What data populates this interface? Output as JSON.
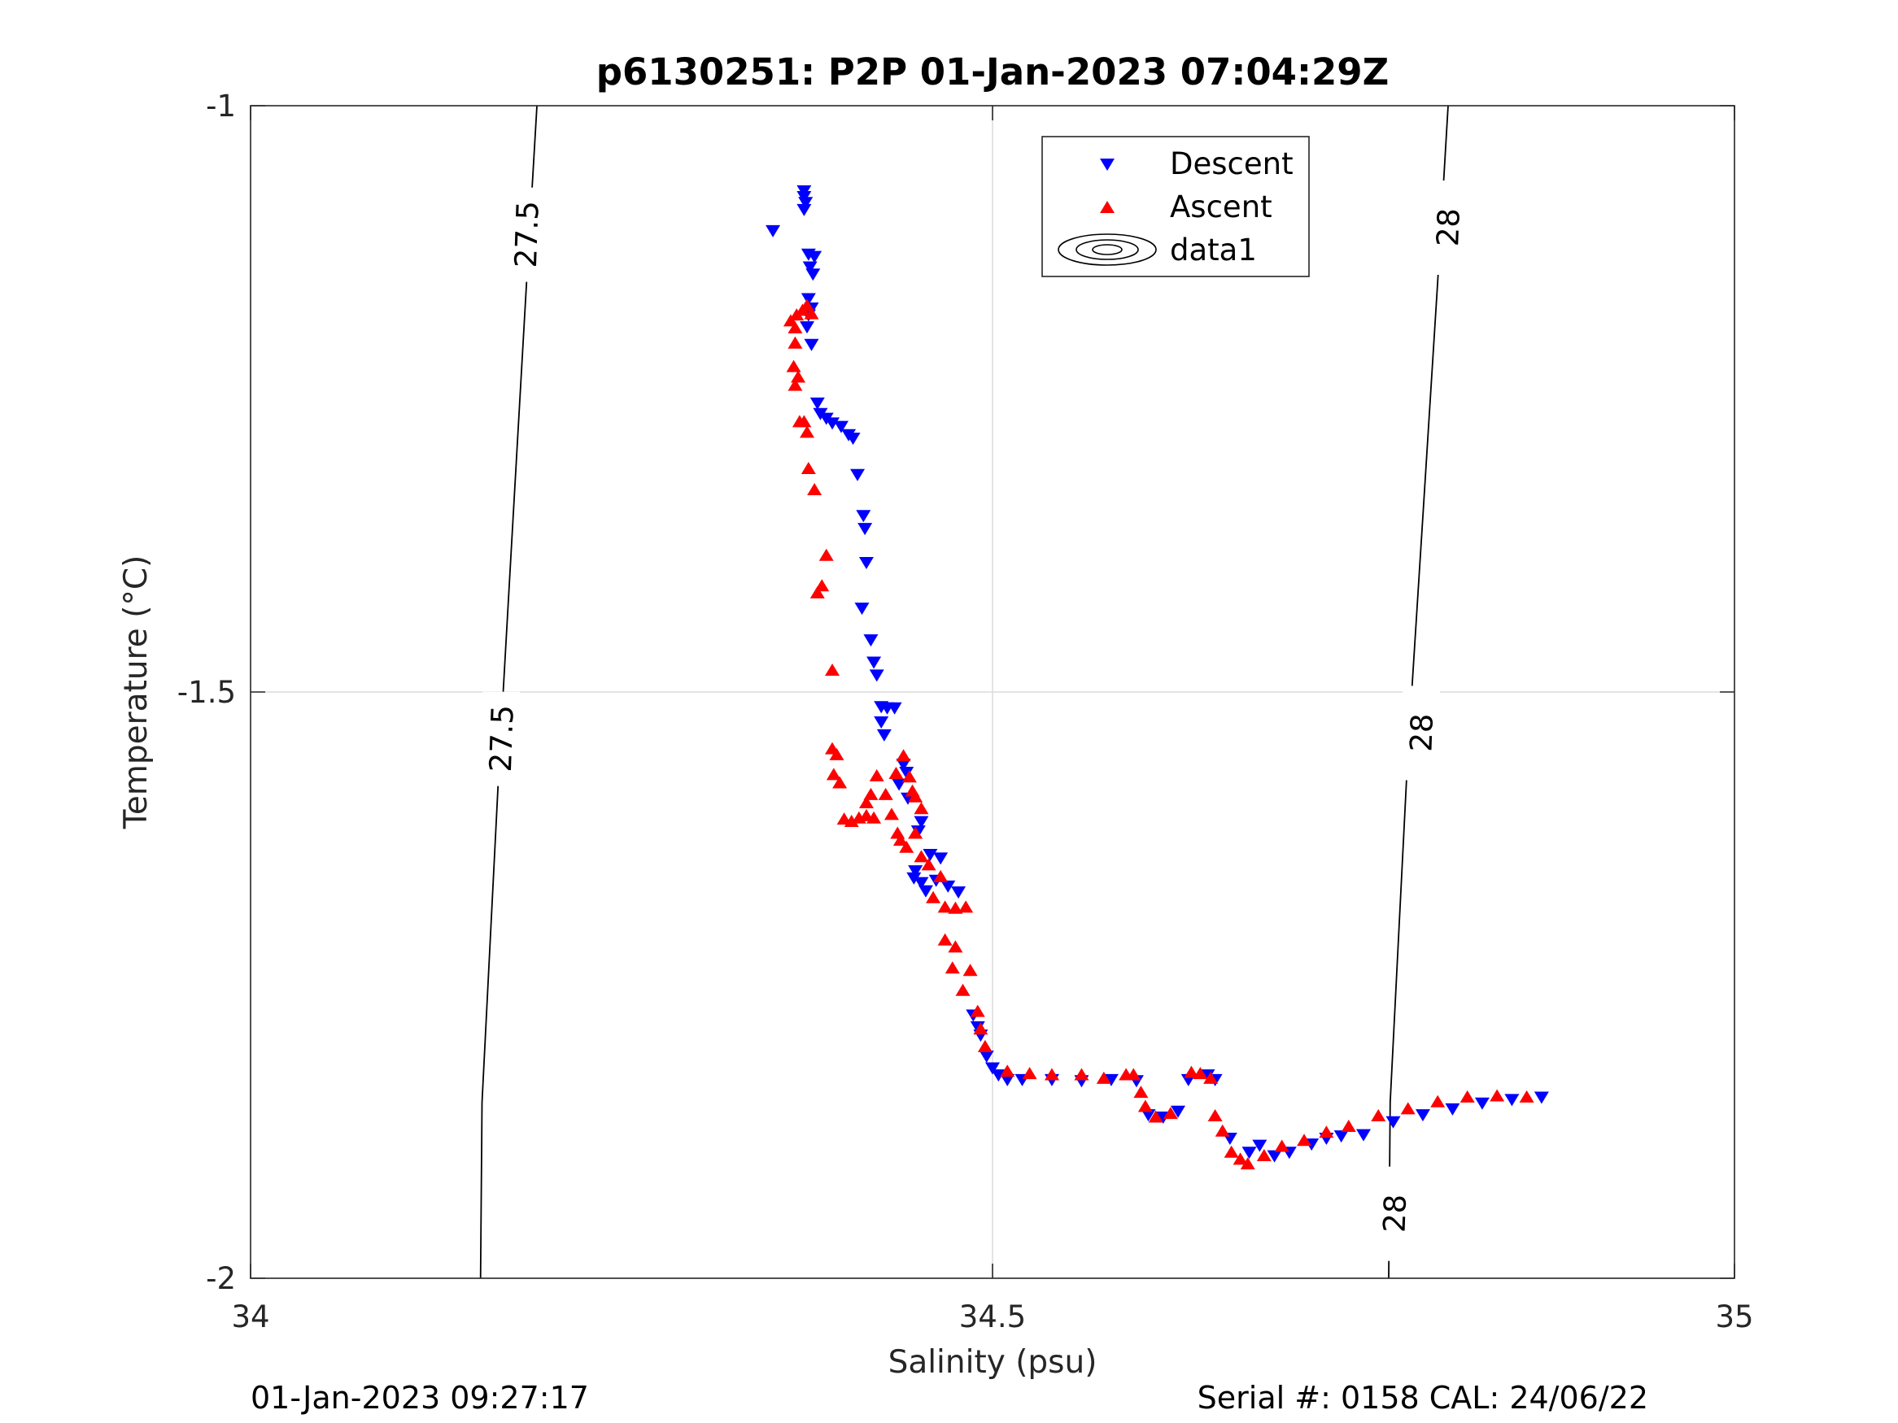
{
  "chart_data": {
    "type": "scatter",
    "title": "p6130251: P2P 01-Jan-2023 07:04:29Z",
    "xlabel": "Salinity (psu)",
    "ylabel": "Temperature (°C)",
    "xlim": [
      34,
      35
    ],
    "ylim": [
      -2,
      -1
    ],
    "xticks": [
      34,
      34.5,
      35
    ],
    "xtick_labels": [
      "34",
      "34.5",
      "35"
    ],
    "yticks": [
      -2,
      -1.5,
      -1
    ],
    "ytick_labels": [
      "-2",
      "-1.5",
      "-1"
    ],
    "grid": true,
    "legend": {
      "placement": "top-center",
      "entries": [
        "Descent",
        "Ascent",
        "data1"
      ]
    },
    "colors": {
      "descent": "#0000ff",
      "ascent": "#ff0000",
      "contour": "#000000",
      "grid": "#dcdcdc",
      "axis": "#262626"
    },
    "series": [
      {
        "name": "Descent",
        "marker": "triangle-down",
        "color": "#0000ff",
        "points": [
          [
            34.373,
            -1.072
          ],
          [
            34.373,
            -1.077
          ],
          [
            34.374,
            -1.082
          ],
          [
            34.373,
            -1.088
          ],
          [
            34.352,
            -1.106
          ],
          [
            34.376,
            -1.126
          ],
          [
            34.38,
            -1.128
          ],
          [
            34.377,
            -1.137
          ],
          [
            34.379,
            -1.143
          ],
          [
            34.376,
            -1.164
          ],
          [
            34.378,
            -1.172
          ],
          [
            34.376,
            -1.178
          ],
          [
            34.375,
            -1.188
          ],
          [
            34.378,
            -1.203
          ],
          [
            34.382,
            -1.253
          ],
          [
            34.384,
            -1.262
          ],
          [
            34.388,
            -1.266
          ],
          [
            34.392,
            -1.27
          ],
          [
            34.398,
            -1.273
          ],
          [
            34.403,
            -1.28
          ],
          [
            34.406,
            -1.283
          ],
          [
            34.409,
            -1.314
          ],
          [
            34.413,
            -1.349
          ],
          [
            34.414,
            -1.36
          ],
          [
            34.415,
            -1.389
          ],
          [
            34.412,
            -1.428
          ],
          [
            34.418,
            -1.455
          ],
          [
            34.42,
            -1.474
          ],
          [
            34.422,
            -1.485
          ],
          [
            34.425,
            -1.512
          ],
          [
            34.429,
            -1.513
          ],
          [
            34.434,
            -1.513
          ],
          [
            34.425,
            -1.525
          ],
          [
            34.427,
            -1.536
          ],
          [
            34.44,
            -1.561
          ],
          [
            34.442,
            -1.568
          ],
          [
            34.437,
            -1.578
          ],
          [
            34.443,
            -1.59
          ],
          [
            34.452,
            -1.61
          ],
          [
            34.45,
            -1.618
          ],
          [
            34.458,
            -1.638
          ],
          [
            34.465,
            -1.641
          ],
          [
            34.448,
            -1.652
          ],
          [
            34.452,
            -1.662
          ],
          [
            34.455,
            -1.669
          ],
          [
            34.447,
            -1.658
          ],
          [
            34.462,
            -1.66
          ],
          [
            34.47,
            -1.665
          ],
          [
            34.477,
            -1.67
          ],
          [
            34.487,
            -1.775
          ],
          [
            34.49,
            -1.785
          ],
          [
            34.492,
            -1.792
          ],
          [
            34.496,
            -1.81
          ],
          [
            34.5,
            -1.82
          ],
          [
            34.504,
            -1.826
          ],
          [
            34.51,
            -1.83
          ],
          [
            34.52,
            -1.83
          ],
          [
            34.54,
            -1.83
          ],
          [
            34.56,
            -1.831
          ],
          [
            34.58,
            -1.83
          ],
          [
            34.597,
            -1.831
          ],
          [
            34.605,
            -1.86
          ],
          [
            34.615,
            -1.862
          ],
          [
            34.625,
            -1.857
          ],
          [
            34.632,
            -1.83
          ],
          [
            34.645,
            -1.826
          ],
          [
            34.65,
            -1.83
          ],
          [
            34.66,
            -1.88
          ],
          [
            34.673,
            -1.892
          ],
          [
            34.68,
            -1.886
          ],
          [
            34.69,
            -1.895
          ],
          [
            34.7,
            -1.892
          ],
          [
            34.715,
            -1.885
          ],
          [
            34.725,
            -1.88
          ],
          [
            34.735,
            -1.878
          ],
          [
            34.75,
            -1.877
          ],
          [
            34.77,
            -1.866
          ],
          [
            34.79,
            -1.86
          ],
          [
            34.81,
            -1.855
          ],
          [
            34.83,
            -1.85
          ],
          [
            34.85,
            -1.847
          ],
          [
            34.87,
            -1.845
          ]
        ]
      },
      {
        "name": "Ascent",
        "marker": "triangle-up",
        "color": "#ff0000",
        "points": [
          [
            34.364,
            -1.184
          ],
          [
            34.367,
            -1.19
          ],
          [
            34.368,
            -1.179
          ],
          [
            34.372,
            -1.175
          ],
          [
            34.375,
            -1.171
          ],
          [
            34.378,
            -1.178
          ],
          [
            34.367,
            -1.203
          ],
          [
            34.366,
            -1.223
          ],
          [
            34.369,
            -1.232
          ],
          [
            34.367,
            -1.239
          ],
          [
            34.373,
            -1.27
          ],
          [
            34.375,
            -1.279
          ],
          [
            34.376,
            -1.31
          ],
          [
            34.37,
            -1.27
          ],
          [
            34.38,
            -1.328
          ],
          [
            34.388,
            -1.384
          ],
          [
            34.385,
            -1.41
          ],
          [
            34.382,
            -1.416
          ],
          [
            34.392,
            -1.482
          ],
          [
            34.392,
            -1.549
          ],
          [
            34.395,
            -1.554
          ],
          [
            34.393,
            -1.571
          ],
          [
            34.397,
            -1.578
          ],
          [
            34.4,
            -1.609
          ],
          [
            34.405,
            -1.611
          ],
          [
            34.41,
            -1.608
          ],
          [
            34.415,
            -1.606
          ],
          [
            34.42,
            -1.608
          ],
          [
            34.415,
            -1.595
          ],
          [
            34.418,
            -1.588
          ],
          [
            34.422,
            -1.572
          ],
          [
            34.428,
            -1.588
          ],
          [
            34.432,
            -1.605
          ],
          [
            34.435,
            -1.57
          ],
          [
            34.44,
            -1.555
          ],
          [
            34.444,
            -1.573
          ],
          [
            34.446,
            -1.585
          ],
          [
            34.448,
            -1.59
          ],
          [
            34.452,
            -1.6
          ],
          [
            34.448,
            -1.621
          ],
          [
            34.436,
            -1.621
          ],
          [
            34.438,
            -1.627
          ],
          [
            34.442,
            -1.633
          ],
          [
            34.452,
            -1.641
          ],
          [
            34.457,
            -1.648
          ],
          [
            34.465,
            -1.658
          ],
          [
            34.46,
            -1.676
          ],
          [
            34.468,
            -1.684
          ],
          [
            34.475,
            -1.685
          ],
          [
            34.482,
            -1.684
          ],
          [
            34.468,
            -1.712
          ],
          [
            34.475,
            -1.718
          ],
          [
            34.473,
            -1.736
          ],
          [
            34.485,
            -1.738
          ],
          [
            34.48,
            -1.755
          ],
          [
            34.49,
            -1.773
          ],
          [
            34.492,
            -1.788
          ],
          [
            34.495,
            -1.803
          ],
          [
            34.51,
            -1.824
          ],
          [
            34.525,
            -1.826
          ],
          [
            34.54,
            -1.827
          ],
          [
            34.56,
            -1.827
          ],
          [
            34.575,
            -1.83
          ],
          [
            34.59,
            -1.827
          ],
          [
            34.595,
            -1.827
          ],
          [
            34.6,
            -1.842
          ],
          [
            34.603,
            -1.854
          ],
          [
            34.61,
            -1.863
          ],
          [
            34.62,
            -1.86
          ],
          [
            34.634,
            -1.825
          ],
          [
            34.64,
            -1.826
          ],
          [
            34.647,
            -1.83
          ],
          [
            34.65,
            -1.862
          ],
          [
            34.655,
            -1.875
          ],
          [
            34.661,
            -1.893
          ],
          [
            34.667,
            -1.899
          ],
          [
            34.672,
            -1.903
          ],
          [
            34.683,
            -1.896
          ],
          [
            34.695,
            -1.888
          ],
          [
            34.71,
            -1.883
          ],
          [
            34.725,
            -1.876
          ],
          [
            34.74,
            -1.871
          ],
          [
            34.76,
            -1.862
          ],
          [
            34.78,
            -1.856
          ],
          [
            34.8,
            -1.85
          ],
          [
            34.82,
            -1.846
          ],
          [
            34.84,
            -1.845
          ],
          [
            34.86,
            -1.846
          ]
        ]
      }
    ],
    "contours": [
      {
        "label": "27.5",
        "points": [
          [
            34.193,
            -1
          ],
          [
            34.186,
            -1.15
          ],
          [
            34.177,
            -1.35
          ],
          [
            34.168,
            -1.55
          ],
          [
            34.16,
            -1.75
          ],
          [
            34.156,
            -1.85
          ],
          [
            34.155,
            -2
          ]
        ],
        "labels_at": [
          [
            34.186,
            -1.11
          ],
          [
            34.169,
            -1.54
          ]
        ]
      },
      {
        "label": "28",
        "points": [
          [
            34.807,
            -1
          ],
          [
            34.8,
            -1.15
          ],
          [
            34.79,
            -1.35
          ],
          [
            34.78,
            -1.55
          ],
          [
            34.772,
            -1.75
          ],
          [
            34.768,
            -1.85
          ],
          [
            34.767,
            -2
          ]
        ],
        "labels_at": [
          [
            34.807,
            -1.104
          ],
          [
            34.789,
            -1.535
          ],
          [
            34.771,
            -1.945
          ]
        ]
      }
    ]
  },
  "footer": {
    "left": "01-Jan-2023 09:27:17",
    "right": "Serial #: 0158  CAL: 24/06/22"
  }
}
